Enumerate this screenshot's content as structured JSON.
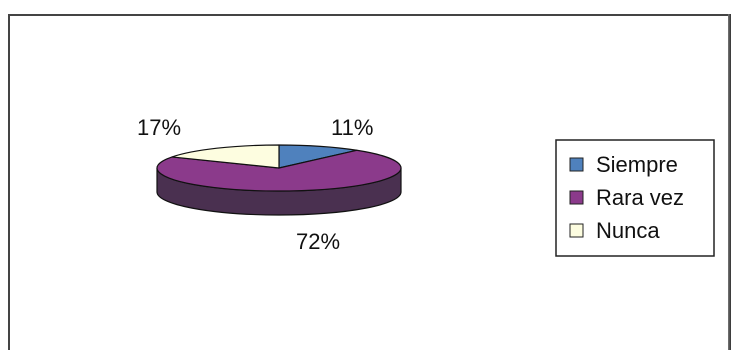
{
  "chart_data": {
    "type": "pie",
    "style": "3d",
    "categories": [
      "Siempre",
      "Rara vez",
      "Nunca"
    ],
    "values": [
      11,
      72,
      17
    ],
    "labels": [
      "11%",
      "72%",
      "17%"
    ],
    "colors": [
      "#4f81bd",
      "#8b3a8b",
      "#fdfde0"
    ],
    "side_colors": [
      "#2f5a8a",
      "#4a3050",
      "#a8a890"
    ],
    "legend": {
      "position": "right",
      "entries": [
        "Siempre",
        "Rara vez",
        "Nunca"
      ]
    }
  }
}
